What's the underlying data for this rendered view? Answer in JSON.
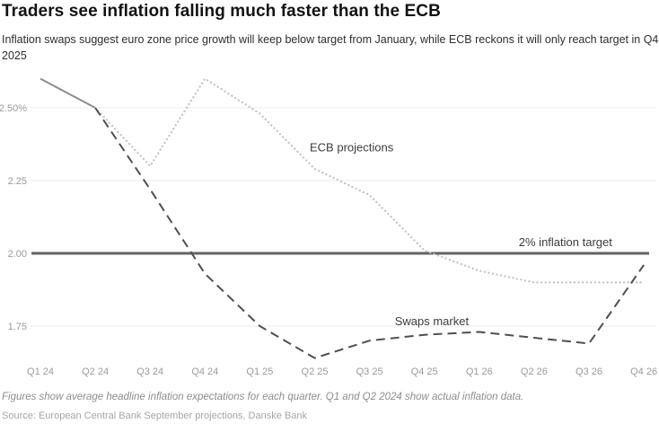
{
  "header": {
    "title": "Traders see inflation falling much faster than the ECB",
    "subtitle": "Inflation swaps suggest euro zone price growth will keep below target from January, while ECB reckons it will only reach target in Q4 2025"
  },
  "chart_data": {
    "type": "line",
    "title": "Traders see inflation falling much faster than the ECB",
    "categories": [
      "Q1 24",
      "Q2 24",
      "Q3 24",
      "Q4 24",
      "Q1 25",
      "Q2 25",
      "Q3 25",
      "Q4 25",
      "Q1 26",
      "Q2 26",
      "Q3 26",
      "Q4 26"
    ],
    "y_ticks": [
      {
        "label": "2.50%",
        "value": 2.5
      },
      {
        "label": "2.25",
        "value": 2.25
      },
      {
        "label": "2.00",
        "value": 2.0
      },
      {
        "label": "1.75",
        "value": 1.75
      }
    ],
    "ylim": [
      1.58,
      2.68
    ],
    "grid": "horizontal",
    "legend_position": "inline-annotations",
    "series": [
      {
        "key": "actual-inflation",
        "name": "Actual inflation (Q1-Q2 2024)",
        "style": "solid",
        "color": "#8c8c8c",
        "values": [
          2.6,
          2.5,
          null,
          null,
          null,
          null,
          null,
          null,
          null,
          null,
          null,
          null
        ]
      },
      {
        "key": "ecb-projections",
        "name": "ECB projections",
        "style": "dotted",
        "color": "#c3c3c3",
        "values": [
          null,
          2.5,
          2.3,
          2.6,
          2.48,
          2.29,
          2.2,
          2.01,
          1.94,
          1.9,
          1.9,
          1.9
        ]
      },
      {
        "key": "swaps-market",
        "name": "Swaps market",
        "style": "dashed",
        "color": "#4f4f4f",
        "values": [
          null,
          2.5,
          2.22,
          1.93,
          1.75,
          1.64,
          1.7,
          1.72,
          1.73,
          1.71,
          1.69,
          1.96
        ]
      }
    ],
    "target_line": {
      "value": 2.0,
      "label": "2% inflation target",
      "color": "#636363",
      "label_anchor": {
        "x_index": 8.72,
        "y_value": 2.025
      }
    },
    "annotations": [
      {
        "text": "ECB projections",
        "series": "ecb-projections",
        "x_index": 4.91,
        "y_value": 2.35
      },
      {
        "text": "Swaps market",
        "series": "swaps-market",
        "x_index": 6.46,
        "y_value": 1.753
      }
    ]
  },
  "colors": {
    "grid": "#ececec",
    "tick_label": "#9b9b9b",
    "annotation_text": "#3c3c3c",
    "target_line": "#636363"
  },
  "footer": {
    "footnote": "Figures show average headline inflation expectations for each quarter. Q1 and Q2 2024 show actual inflation data.",
    "source": "Source: European Central Bank September projections, Danske Bank"
  }
}
